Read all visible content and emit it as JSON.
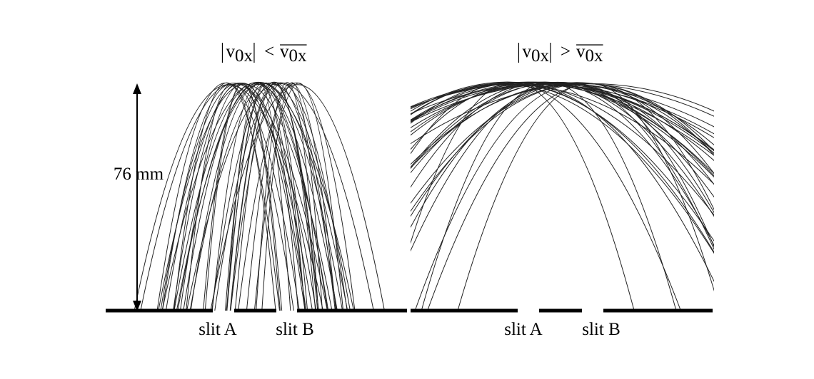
{
  "panels": [
    {
      "label": {
        "lhs": "v",
        "lhs_sub": "0x",
        "relation": "<",
        "rhs": "v",
        "rhs_sub": "0x"
      },
      "slits": [
        "slit A",
        "slit B"
      ]
    },
    {
      "label": {
        "lhs": "v",
        "lhs_sub": "0x",
        "relation": ">",
        "rhs": "v",
        "rhs_sub": "0x"
      },
      "slits": [
        "slit A",
        "slit B"
      ]
    }
  ],
  "scale_label": "76 mm"
}
